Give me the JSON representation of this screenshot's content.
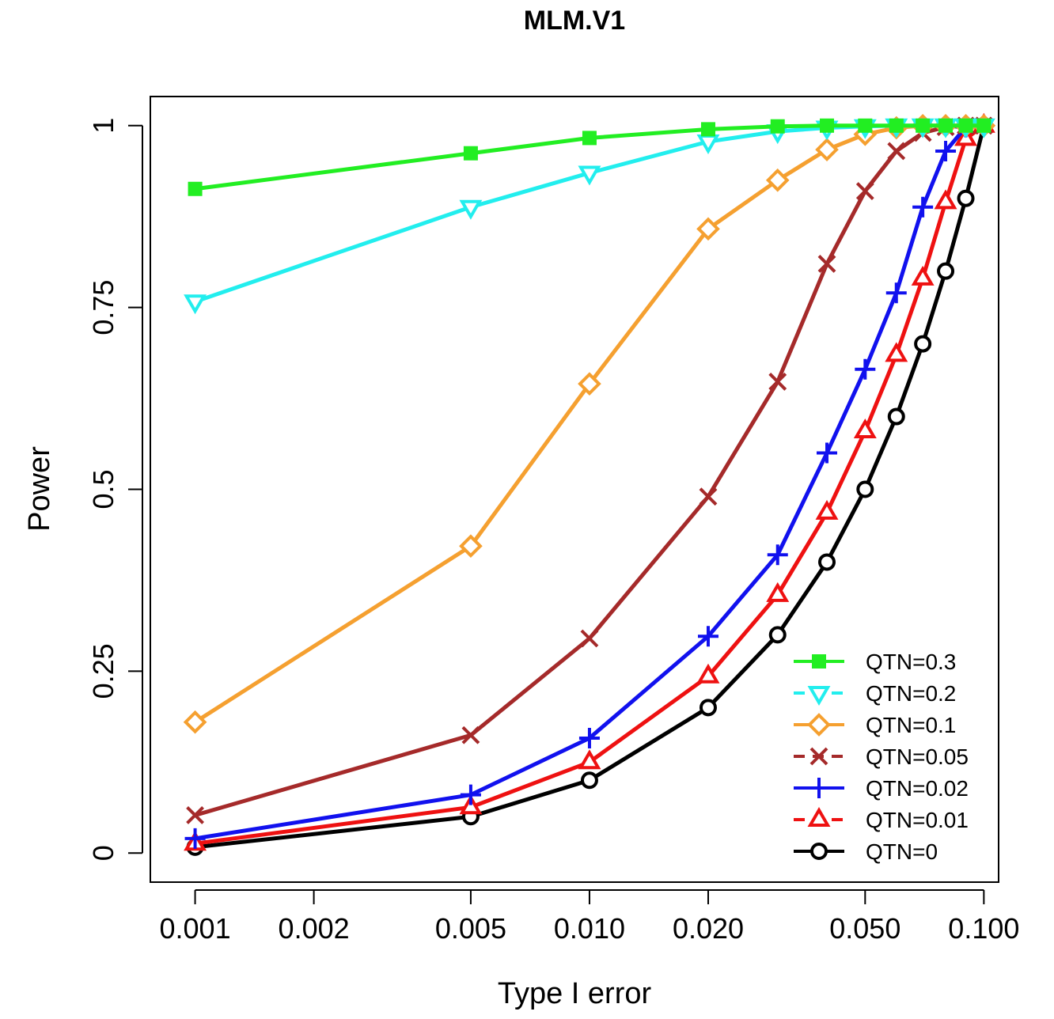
{
  "chart_data": {
    "type": "line",
    "title": "MLM.V1",
    "xlabel": "Type I error",
    "ylabel": "Power",
    "xscale": "log",
    "xlim": [
      0.00077,
      0.109
    ],
    "ylim": [
      -0.04,
      1.04
    ],
    "x": [
      0.001,
      0.005,
      0.01,
      0.02,
      0.03,
      0.04,
      0.05,
      0.06,
      0.07,
      0.08,
      0.09,
      0.1
    ],
    "xticks": [
      0.001,
      0.002,
      0.005,
      0.01,
      0.02,
      0.05,
      0.1
    ],
    "xtick_labels": [
      "0.001",
      "0.002",
      "0.005",
      "0.010",
      "0.020",
      "0.050",
      "0.100"
    ],
    "yticks": [
      0,
      0.25,
      0.5,
      0.75,
      1
    ],
    "ytick_labels": [
      "0",
      "0.25",
      "0.5",
      "0.75",
      "1"
    ],
    "legend_position": "bottom-right",
    "series": [
      {
        "name": "QTN=0.3",
        "color": "#22ee22",
        "marker": "square",
        "values": [
          0.913,
          0.962,
          0.983,
          0.995,
          0.999,
          1.0,
          1.0,
          1.0,
          1.0,
          1.0,
          1.0,
          1.0
        ]
      },
      {
        "name": "QTN=0.2",
        "color": "#22eeee",
        "marker": "triangle-down",
        "values": [
          0.758,
          0.888,
          0.935,
          0.978,
          0.992,
          0.997,
          0.999,
          1.0,
          1.0,
          1.0,
          1.0,
          1.0
        ]
      },
      {
        "name": "QTN=0.1",
        "color": "#f5a030",
        "marker": "diamond",
        "values": [
          0.18,
          0.422,
          0.645,
          0.858,
          0.925,
          0.967,
          0.988,
          0.997,
          1.0,
          1.0,
          1.0,
          1.0
        ]
      },
      {
        "name": "QTN=0.05",
        "color": "#a52a2a",
        "marker": "x",
        "values": [
          0.052,
          0.162,
          0.295,
          0.49,
          0.648,
          0.81,
          0.91,
          0.965,
          0.99,
          0.998,
          1.0,
          1.0
        ]
      },
      {
        "name": "QTN=0.02",
        "color": "#1111ee",
        "marker": "plus",
        "values": [
          0.02,
          0.08,
          0.158,
          0.298,
          0.41,
          0.55,
          0.665,
          0.77,
          0.888,
          0.965,
          0.998,
          1.0
        ]
      },
      {
        "name": "QTN=0.01",
        "color": "#ee1111",
        "marker": "triangle-up",
        "values": [
          0.013,
          0.063,
          0.125,
          0.243,
          0.355,
          0.468,
          0.58,
          0.685,
          0.79,
          0.895,
          0.982,
          1.0
        ]
      },
      {
        "name": "QTN=0",
        "color": "#000000",
        "marker": "circle",
        "values": [
          0.008,
          0.05,
          0.1,
          0.2,
          0.3,
          0.4,
          0.5,
          0.6,
          0.7,
          0.8,
          0.9,
          1.0
        ]
      }
    ]
  }
}
